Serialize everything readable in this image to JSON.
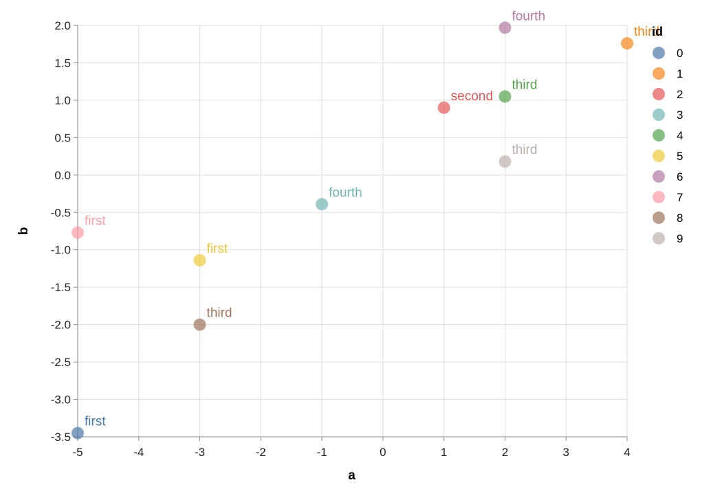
{
  "chart_data": {
    "type": "scatter",
    "xlabel": "a",
    "ylabel": "b",
    "xlim": [
      -5,
      4
    ],
    "ylim": [
      -3.5,
      2.0
    ],
    "x_ticks": [
      -5,
      -4,
      -3,
      -2,
      -1,
      0,
      1,
      2,
      3,
      4
    ],
    "y_ticks": [
      2.0,
      1.5,
      1.0,
      0.5,
      0.0,
      -0.5,
      -1.0,
      -1.5,
      -2.0,
      -2.5,
      -3.0,
      -3.5
    ],
    "grid": true,
    "legend": {
      "title": "id",
      "placement": "right",
      "entries": [
        "0",
        "1",
        "2",
        "3",
        "4",
        "5",
        "6",
        "7",
        "8",
        "9"
      ]
    },
    "points": [
      {
        "id": "0",
        "a": -5,
        "b": -3.45,
        "label": "first",
        "color": "#4c78a8"
      },
      {
        "id": "1",
        "a": 4,
        "b": 1.76,
        "label": "third",
        "color": "#f58518"
      },
      {
        "id": "2",
        "a": 1,
        "b": 0.9,
        "label": "second",
        "color": "#e45756"
      },
      {
        "id": "3",
        "a": -1,
        "b": -0.39,
        "label": "fourth",
        "color": "#72b7b2"
      },
      {
        "id": "4",
        "a": 2,
        "b": 1.05,
        "label": "third",
        "color": "#54a24b"
      },
      {
        "id": "5",
        "a": -3,
        "b": -1.14,
        "label": "first",
        "color": "#eeca3b"
      },
      {
        "id": "6",
        "a": 2,
        "b": 1.97,
        "label": "fourth",
        "color": "#b279a2"
      },
      {
        "id": "7",
        "a": -5,
        "b": -0.77,
        "label": "first",
        "color": "#ff9da6"
      },
      {
        "id": "8",
        "a": -3,
        "b": -2.0,
        "label": "third",
        "color": "#9d755d"
      },
      {
        "id": "9",
        "a": 2,
        "b": 0.18,
        "label": "third",
        "color": "#bab0ac"
      }
    ],
    "legend_colors": [
      "#4c78a8",
      "#f58518",
      "#e45756",
      "#72b7b2",
      "#54a24b",
      "#eeca3b",
      "#b279a2",
      "#ff9da6",
      "#9d755d",
      "#bab0ac"
    ]
  }
}
